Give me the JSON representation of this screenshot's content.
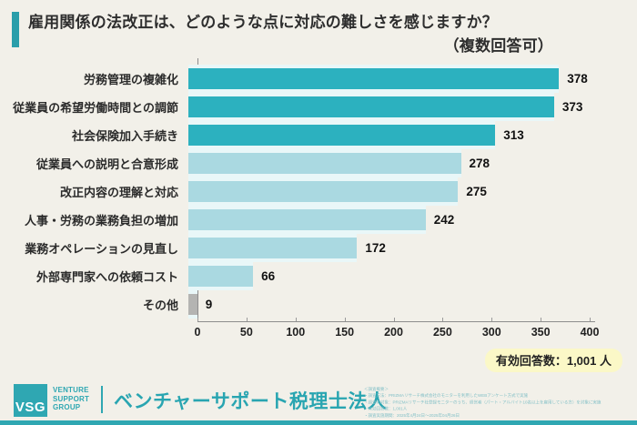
{
  "title": {
    "line1": "雇用関係の法改正は、どのような点に対応の難しさを感じますか？",
    "line2": "（複数回答可）"
  },
  "chart_data": {
    "type": "bar",
    "orientation": "horizontal",
    "title": "雇用関係の法改正は、どのような点に対応の難しさを感じますか？（複数回答可）",
    "categories": [
      "労務管理の複雑化",
      "従業員の希望労働時間との調節",
      "社会保険加入手続き",
      "従業員への説明と合意形成",
      "改正内容の理解と対応",
      "人事・労務の業務負担の増加",
      "業務オペレーションの見直し",
      "外部専門家への依頼コスト",
      "その他"
    ],
    "values": [
      378,
      373,
      313,
      278,
      275,
      242,
      172,
      66,
      9
    ],
    "bar_colors": [
      "#2cb1bf",
      "#2cb1bf",
      "#2cb1bf",
      "#aad9e1",
      "#aad9e1",
      "#aad9e1",
      "#aad9e1",
      "#aad9e1",
      "#b4b4b2"
    ],
    "xlabel": "",
    "ylabel": "",
    "xlim": [
      0,
      400
    ],
    "x_ticks": [
      0,
      50,
      100,
      150,
      200,
      250,
      300,
      350,
      400
    ],
    "grid": false,
    "legend": false,
    "unit": "人"
  },
  "badge": {
    "label": "有効回答数：1,001 人",
    "bg": "#fbf8c7"
  },
  "footer": {
    "logo_text": "VSG",
    "logo_caption": "VENTURE\nSUPPORT\nGROUP",
    "company_name": "ベンチャーサポート税理士法人",
    "notes": [
      "＜調査概要＞",
      "・調査方法：PRIZMAリサーチ株式会社のモニターを利用したWEBアンケート方式で実施",
      "・調査の対象：PRIZMAリサーチ社登録モニターのうち、経営者（パート・アルバイト10名以上を雇用している方）を対象に実施",
      "・有効回答数：1,001人",
      "・調査実施期間：2025年4月24日～2025年04月26日"
    ]
  },
  "colors": {
    "background": "#f2f0e9",
    "accent_teal": "#2a9eaa",
    "bar_dark": "#2cb1bf",
    "bar_light": "#aad9e1",
    "bar_gray": "#b4b4b2",
    "badge_bg": "#fbf8c7",
    "footer_teal": "#2fa7b2"
  }
}
